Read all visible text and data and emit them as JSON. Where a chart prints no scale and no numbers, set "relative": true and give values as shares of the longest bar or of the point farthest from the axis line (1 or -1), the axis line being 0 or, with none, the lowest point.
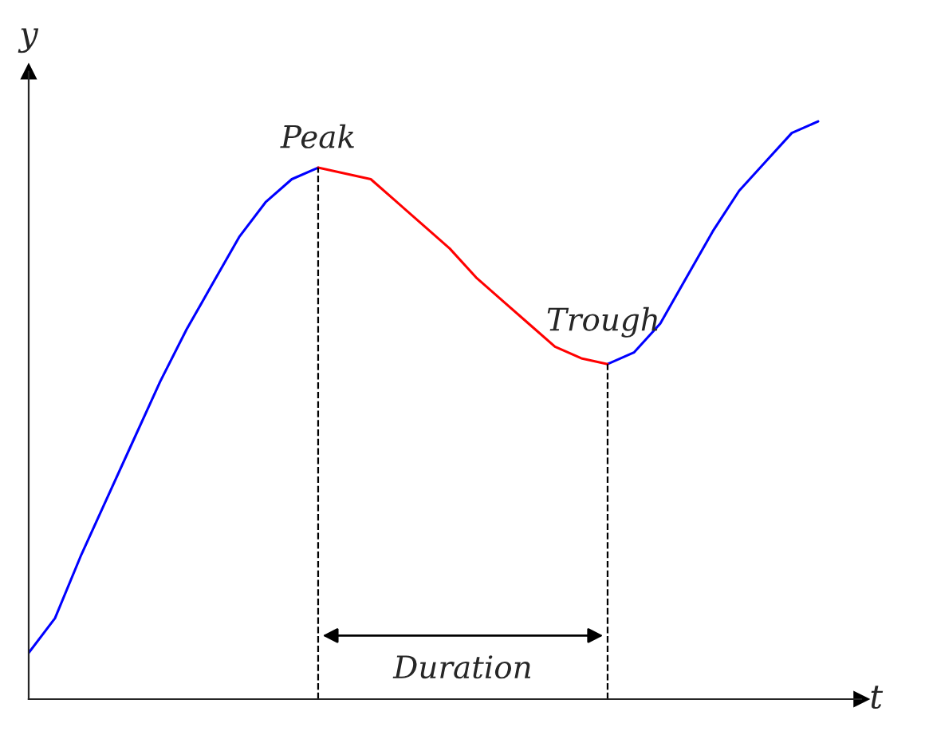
{
  "chart_data": {
    "type": "line",
    "relative": true,
    "xlabel": "t",
    "ylabel": "y",
    "categories": [
      null,
      null,
      null,
      null,
      null,
      null,
      null,
      null,
      null,
      null,
      null,
      null,
      null,
      null,
      null,
      null,
      null,
      null,
      null,
      null,
      null,
      null,
      null,
      null,
      null,
      null,
      null,
      null,
      null,
      null,
      null
    ],
    "series": [
      {
        "color": "#0000ff",
        "values": [
          0.08,
          0.14,
          0.25,
          0.35,
          0.45,
          0.55,
          0.64,
          0.72,
          0.8,
          0.86,
          0.9,
          0.92,
          null,
          null,
          null,
          null,
          null,
          null,
          null,
          null,
          null,
          null,
          0.58,
          0.6,
          0.65,
          0.73,
          0.81,
          0.88,
          0.93,
          0.98,
          1
        ]
      },
      {
        "color": "#ff0000",
        "values": [
          null,
          null,
          null,
          null,
          null,
          null,
          null,
          null,
          null,
          null,
          null,
          0.92,
          0.91,
          0.9,
          0.86,
          0.82,
          0.78,
          0.73,
          0.69,
          0.65,
          0.61,
          0.59,
          0.58,
          null,
          null,
          null,
          null,
          null,
          null,
          null,
          null
        ]
      }
    ],
    "annotations": [
      "Peak",
      "Trough",
      "Duration"
    ],
    "legend": false,
    "marker": "none",
    "line_style": "solid",
    "tick_labels": false
  }
}
